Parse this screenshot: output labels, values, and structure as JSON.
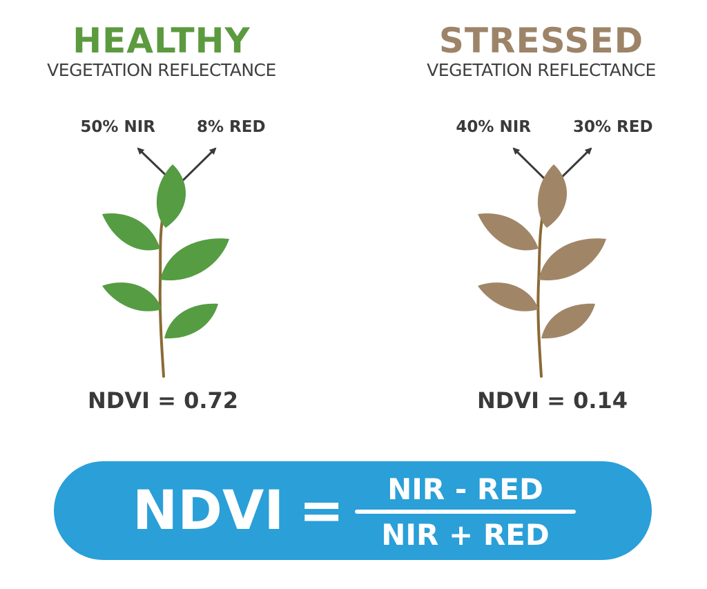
{
  "panels": {
    "healthy": {
      "title": "HEALTHY",
      "subtitle": "VEGETATION REFLECTANCE",
      "nir_label": "50% NIR",
      "red_label": "8% RED",
      "ndvi_label": "NDVI = 0.72",
      "title_color": "#5c9a3f",
      "leaf_color": "#559c42",
      "stem_color": "#8a6a36"
    },
    "stressed": {
      "title": "STRESSED",
      "subtitle": "VEGETATION REFLECTANCE",
      "nir_label": "40% NIR",
      "red_label": "30% RED",
      "ndvi_label": "NDVI = 0.14",
      "title_color": "#9d8468",
      "leaf_color": "#a08667",
      "stem_color": "#8a6a36"
    }
  },
  "formula": {
    "lhs": "NDVI",
    "equals": "=",
    "numerator": "NIR - RED",
    "denominator": "NIR + RED",
    "banner_color": "#2a9fd8"
  },
  "arrow_color": "#3a3a3a"
}
